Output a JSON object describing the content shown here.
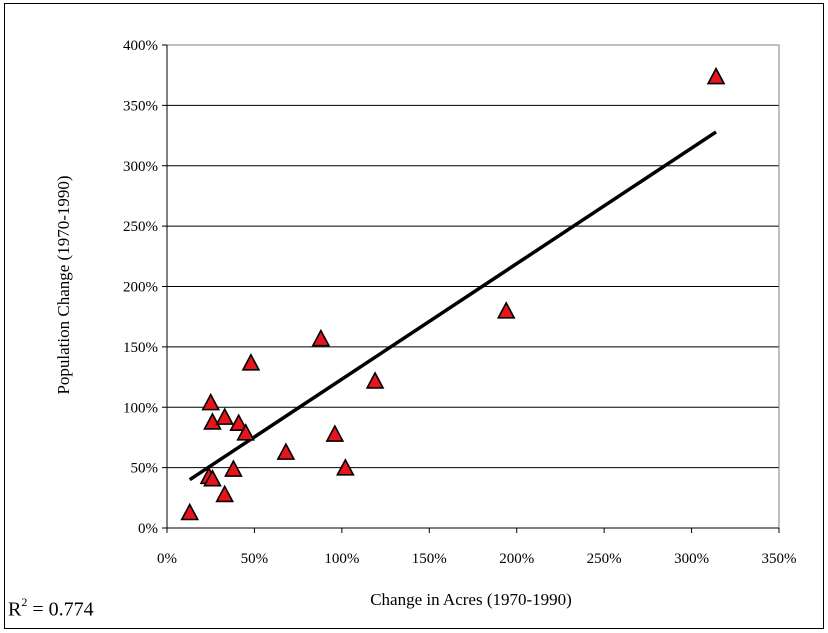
{
  "chart_data": {
    "type": "scatter",
    "xlabel": "Change in Acres (1970-1990)",
    "ylabel": "Population Change (1970-1990)",
    "xlim": [
      0,
      350
    ],
    "ylim": [
      0,
      400
    ],
    "x_ticks": [
      "0%",
      "50%",
      "100%",
      "150%",
      "200%",
      "250%",
      "300%",
      "350%"
    ],
    "y_ticks": [
      "0%",
      "50%",
      "100%",
      "150%",
      "200%",
      "250%",
      "300%",
      "350%",
      "400%"
    ],
    "grid": "horizontal",
    "marker": "triangle",
    "marker_color": "#e8141c",
    "points": [
      {
        "x": 13,
        "y": 12
      },
      {
        "x": 24,
        "y": 42
      },
      {
        "x": 26,
        "y": 40
      },
      {
        "x": 25,
        "y": 103
      },
      {
        "x": 26,
        "y": 87
      },
      {
        "x": 33,
        "y": 91
      },
      {
        "x": 33,
        "y": 27
      },
      {
        "x": 38,
        "y": 48
      },
      {
        "x": 41,
        "y": 86
      },
      {
        "x": 45,
        "y": 78
      },
      {
        "x": 48,
        "y": 136
      },
      {
        "x": 68,
        "y": 62
      },
      {
        "x": 88,
        "y": 156
      },
      {
        "x": 96,
        "y": 77
      },
      {
        "x": 102,
        "y": 49
      },
      {
        "x": 119,
        "y": 121
      },
      {
        "x": 194,
        "y": 179
      },
      {
        "x": 314,
        "y": 373
      }
    ],
    "trendline": {
      "x": [
        13,
        314
      ],
      "y": [
        40,
        328
      ]
    },
    "r_squared_prefix": "R",
    "r_squared_exp": "2",
    "r_squared_value": " = 0.774"
  }
}
